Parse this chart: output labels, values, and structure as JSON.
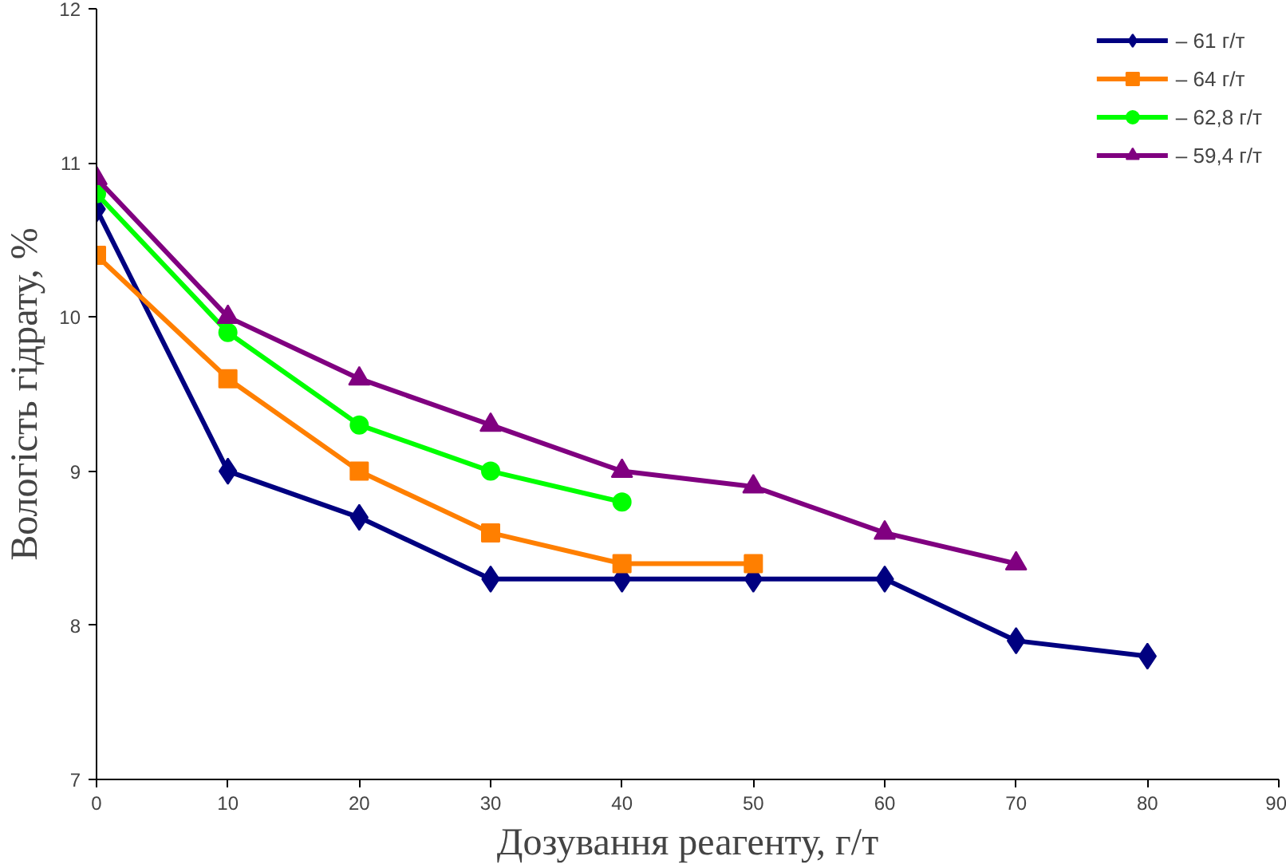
{
  "chart_data": {
    "type": "line",
    "xlabel": "Дозування реагенту, г/т",
    "ylabel": "Вологість гідрату, %",
    "xlim": [
      0,
      90
    ],
    "xticks": [
      0,
      10,
      20,
      30,
      40,
      50,
      60,
      70,
      80,
      90
    ],
    "ylim": [
      7,
      12
    ],
    "yticks": [
      7,
      8,
      9,
      10,
      11,
      12
    ],
    "grid": false,
    "legend": "top right",
    "series": [
      {
        "name": "– 61 г/т",
        "color": "#000080",
        "marker": "diamond",
        "x": [
          0,
          10,
          20,
          30,
          40,
          50,
          60,
          70,
          80
        ],
        "values": [
          10.7,
          9.0,
          8.7,
          8.3,
          8.3,
          8.3,
          8.3,
          7.9,
          7.8
        ]
      },
      {
        "name": "– 64 г/т",
        "color": "#ff7f00",
        "marker": "square",
        "x": [
          0,
          10,
          20,
          30,
          40,
          50
        ],
        "values": [
          10.4,
          9.6,
          9.0,
          8.6,
          8.4,
          8.4
        ]
      },
      {
        "name": "– 62,8 г/т",
        "color": "#00ff00",
        "marker": "circle",
        "x": [
          0,
          10,
          20,
          30,
          40
        ],
        "values": [
          10.8,
          9.9,
          9.3,
          9.0,
          8.8
        ]
      },
      {
        "name": "– 59,4 г/т",
        "color": "#800080",
        "marker": "triangle",
        "x": [
          0,
          10,
          20,
          30,
          40,
          50,
          60,
          70
        ],
        "values": [
          10.9,
          10.0,
          9.6,
          9.3,
          9.0,
          8.9,
          8.6,
          8.4
        ]
      }
    ]
  }
}
